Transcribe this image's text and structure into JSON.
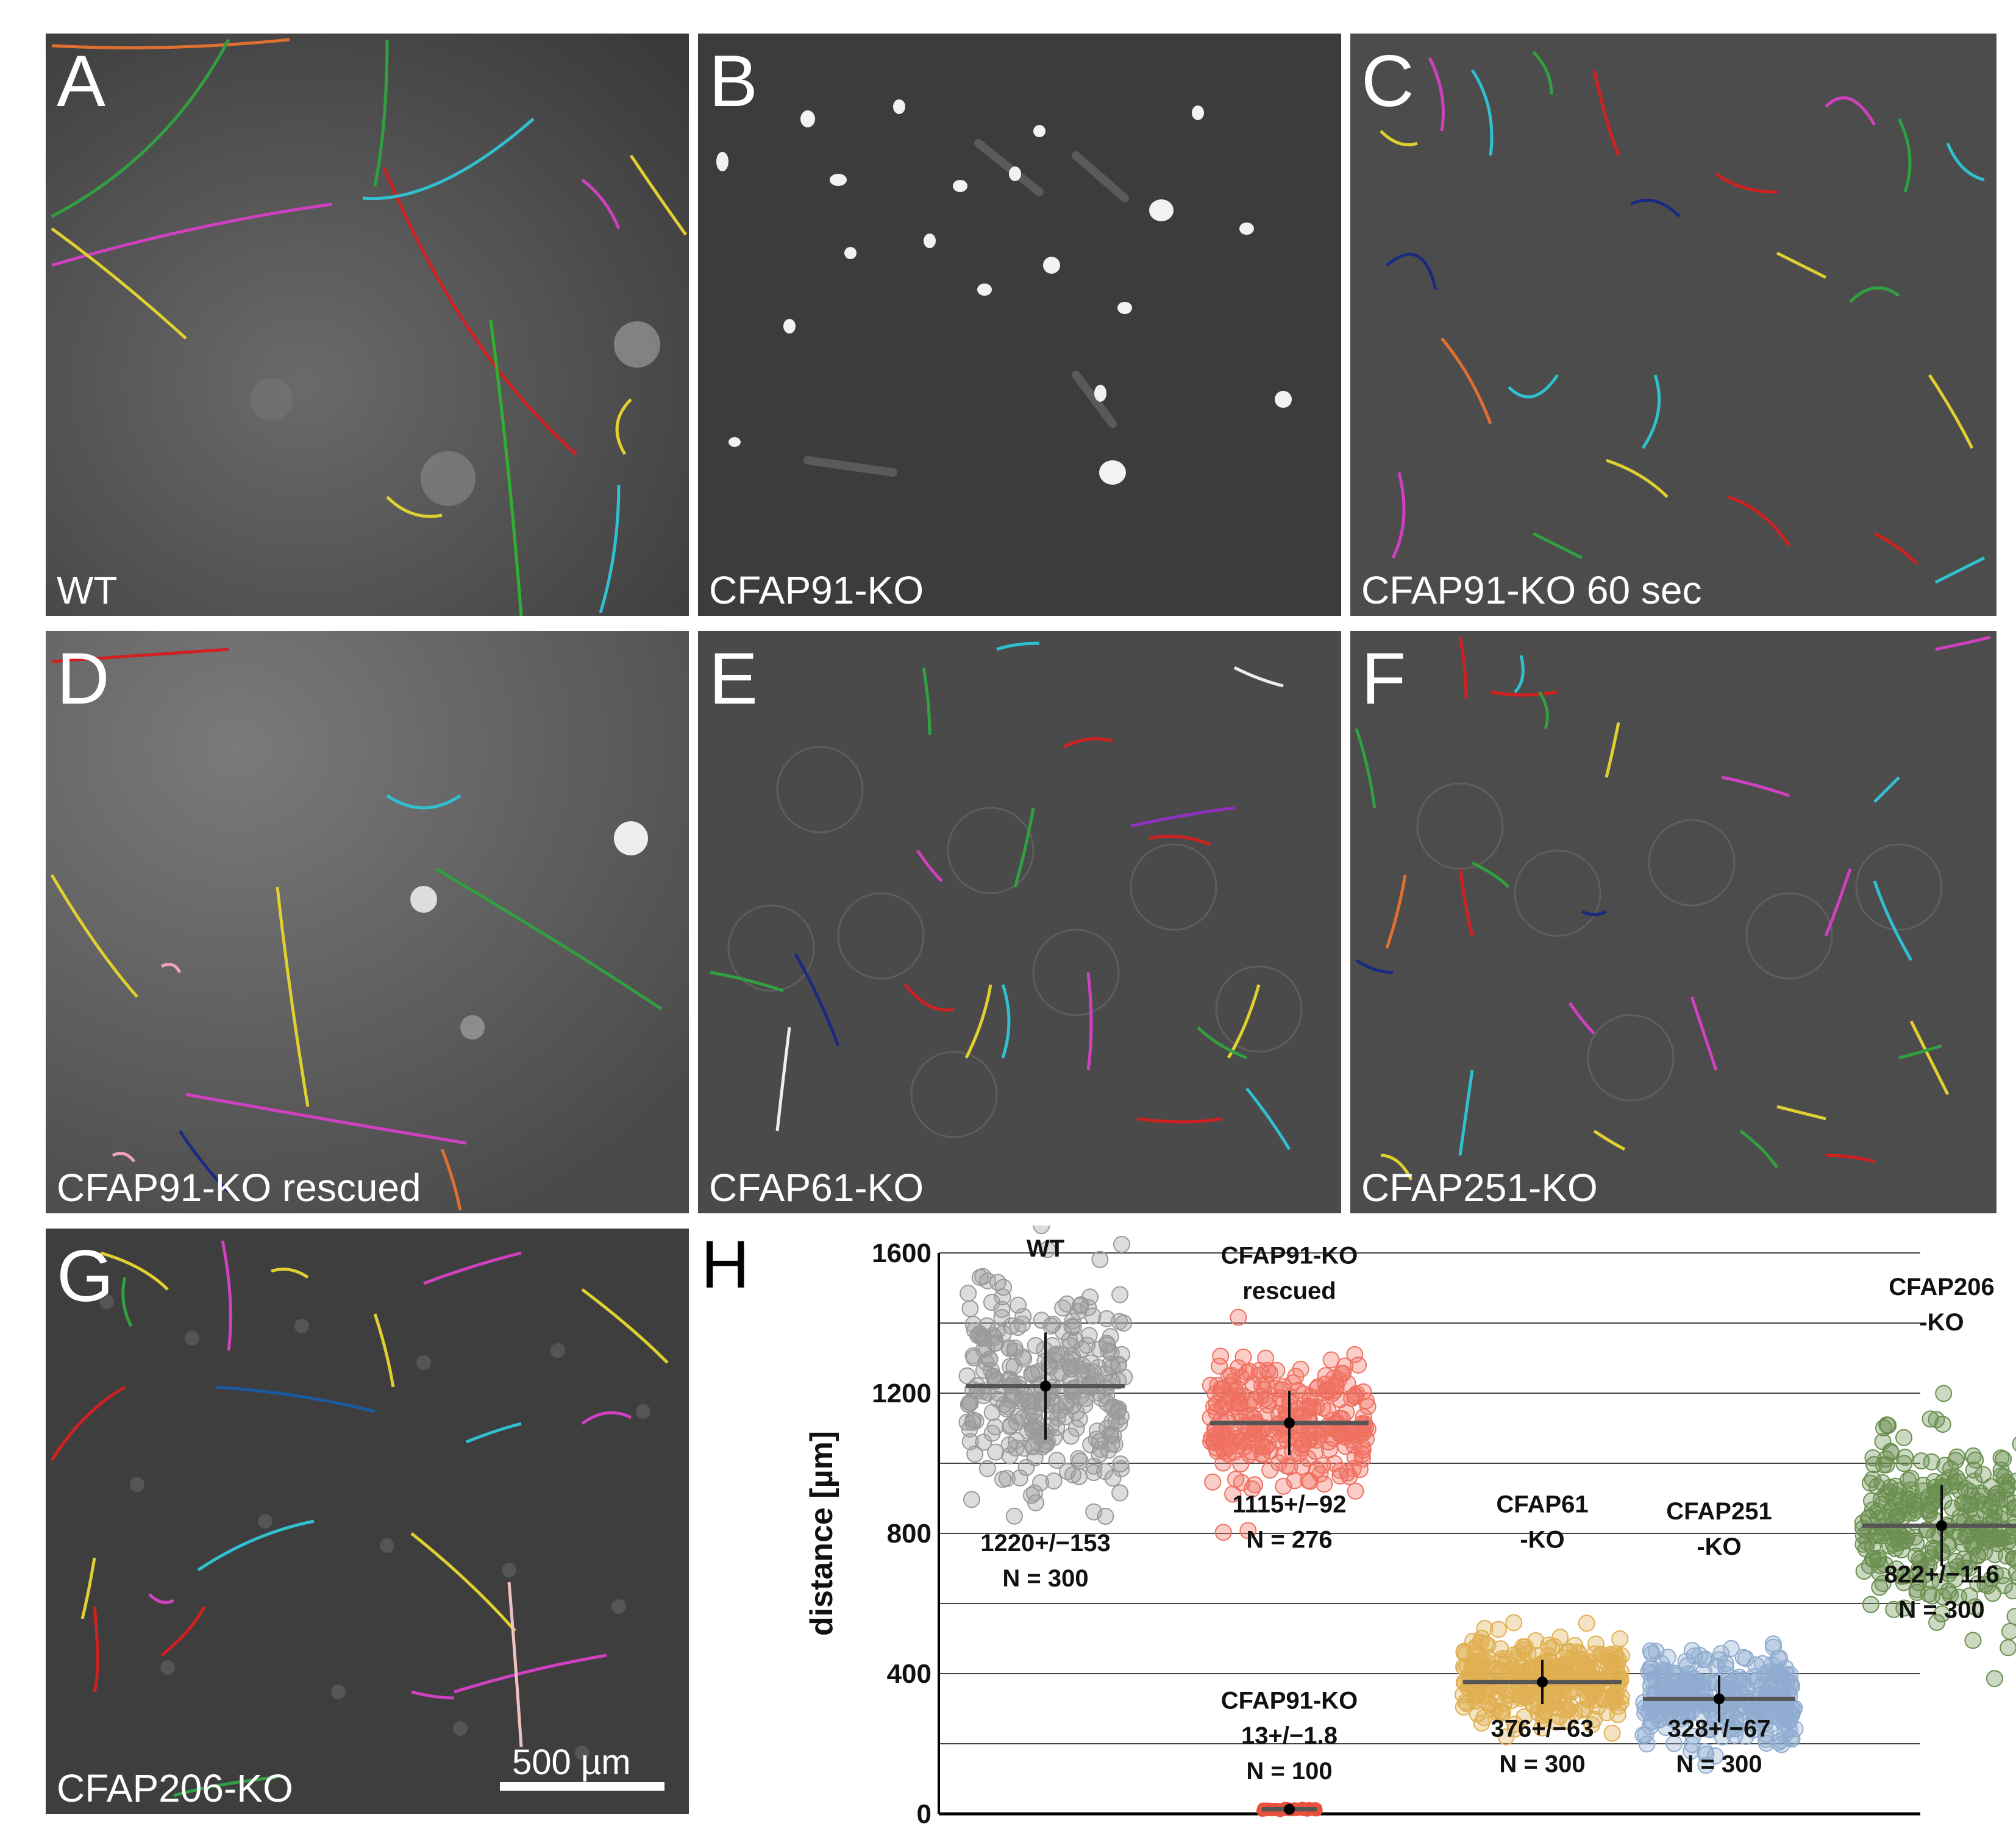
{
  "panels": [
    {
      "letter": "A",
      "caption": "WT"
    },
    {
      "letter": "B",
      "caption": "CFAP91-KO"
    },
    {
      "letter": "C",
      "caption": "CFAP91-KO 60 sec"
    },
    {
      "letter": "D",
      "caption": "CFAP91-KO rescued"
    },
    {
      "letter": "E",
      "caption": "CFAP61-KO"
    },
    {
      "letter": "F",
      "caption": "CFAP251-KO"
    },
    {
      "letter": "G",
      "caption": "CFAP206-KO"
    }
  ],
  "scalebar": {
    "label": "500 µm"
  },
  "chart_panel": {
    "letter": "H"
  },
  "chart_data": {
    "type": "scatter",
    "ylabel": "distance [µm]",
    "ylim": [
      0,
      1600
    ],
    "yticks": [
      0,
      400,
      800,
      1200,
      1600
    ],
    "grid": true,
    "groups": [
      {
        "name": "WT",
        "label_lines": [
          "WT"
        ],
        "mean": 1220,
        "sd": 153,
        "n": 300,
        "stat_text": "1220+/−153",
        "n_text": "N = 300",
        "color": "#9a9a9a"
      },
      {
        "name": "CFAP91-KO rescued",
        "label_lines": [
          "CFAP91-KO",
          "rescued"
        ],
        "mean": 1115,
        "sd": 92,
        "n": 276,
        "stat_text": "1115+/−92",
        "n_text": "N = 276",
        "color": "#f07060"
      },
      {
        "name": "CFAP91-KO",
        "label_lines": [
          "CFAP91-KO"
        ],
        "mean": 13,
        "sd": 1.8,
        "n": 100,
        "stat_text": "13+/−1.8",
        "n_text": "N = 100",
        "color": "#e8503c"
      },
      {
        "name": "CFAP61-KO",
        "label_lines": [
          "CFAP61",
          "-KO"
        ],
        "mean": 376,
        "sd": 63,
        "n": 300,
        "stat_text": "376+/−63",
        "n_text": "N = 300",
        "color": "#e0b050"
      },
      {
        "name": "CFAP251-KO",
        "label_lines": [
          "CFAP251",
          "-KO"
        ],
        "mean": 328,
        "sd": 67,
        "n": 300,
        "stat_text": "328+/−67",
        "n_text": "N = 300",
        "color": "#90acd0"
      },
      {
        "name": "CFAP206-KO",
        "label_lines": [
          "CFAP206",
          "-KO"
        ],
        "mean": 822,
        "sd": 116,
        "n": 300,
        "stat_text": "822+/−116",
        "n_text": "N = 300",
        "color": "#6a9050"
      }
    ]
  }
}
